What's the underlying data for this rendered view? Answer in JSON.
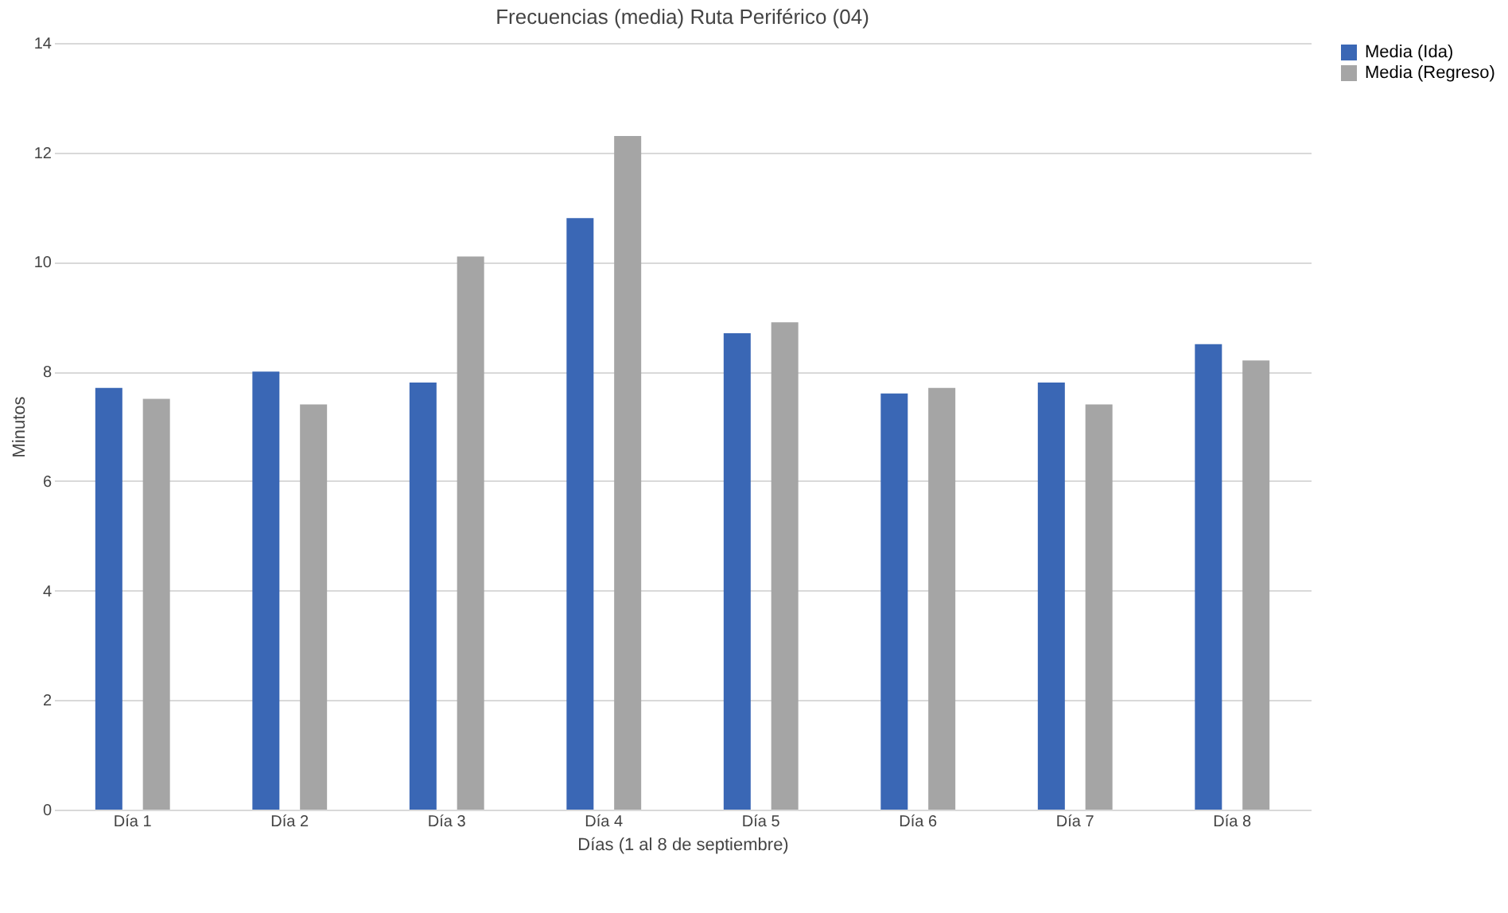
{
  "chart_data": {
    "type": "bar",
    "title": "Frecuencias (media) Ruta Periférico (04)",
    "xlabel": "Días (1 al 8 de septiembre)",
    "ylabel": "Minutos",
    "categories": [
      "Día 1",
      "Día 2",
      "Día 3",
      "Día 4",
      "Día 5",
      "Día 6",
      "Día 7",
      "Día 8"
    ],
    "series": [
      {
        "name": "Media (Ida)",
        "color": "#3a67b5",
        "values": [
          7.7,
          8.0,
          7.8,
          10.8,
          8.7,
          7.6,
          7.8,
          8.5
        ]
      },
      {
        "name": "Media (Regreso)",
        "color": "#a5a5a5",
        "values": [
          7.5,
          7.4,
          10.1,
          12.3,
          8.9,
          7.7,
          7.4,
          8.2
        ]
      }
    ],
    "ylim": [
      0,
      14
    ],
    "yticks": [
      0,
      2,
      4,
      6,
      8,
      10,
      12,
      14
    ],
    "grid": "y",
    "legend": "right"
  }
}
